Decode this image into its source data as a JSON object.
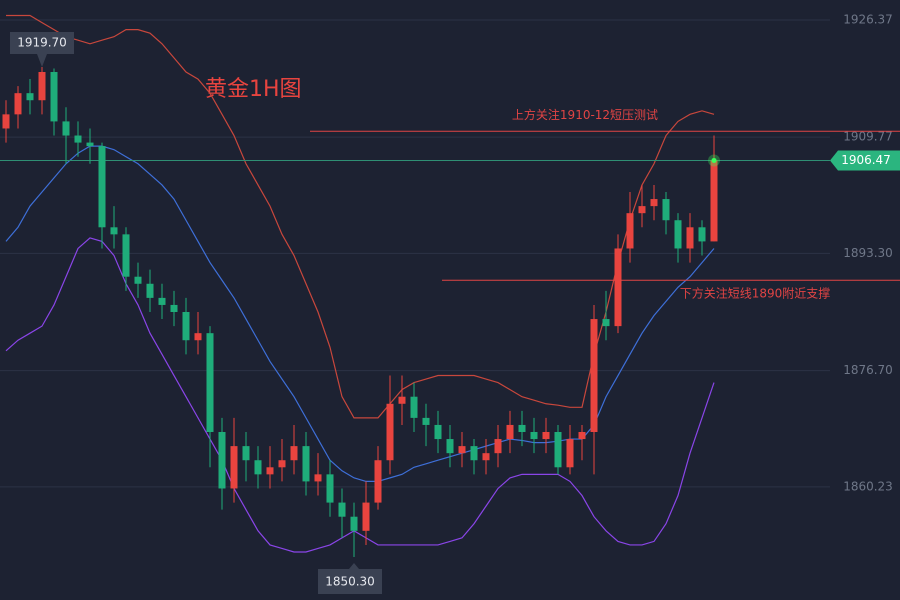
{
  "chart_data": {
    "type": "candlestick",
    "title": "黄金1H图",
    "ylim": [
      1844.2,
      1929.2
    ],
    "yticks": [
      1926.37,
      1909.77,
      {
        "value": 1893.3,
        "label": "1893.30"
      },
      {
        "value": 1876.7,
        "label": "1876.70"
      },
      1860.23
    ],
    "grid": true,
    "up_color": "#e8443f",
    "down_color": "#1fad7a",
    "open": [
      1911,
      1913,
      1916,
      1915,
      1919,
      1912,
      1910,
      1909,
      1908.5,
      1897,
      1896,
      1890,
      1889,
      1887,
      1886,
      1885,
      1881,
      1882,
      1868,
      1860,
      1866,
      1864,
      1862,
      1863,
      1864,
      1866,
      1861,
      1862,
      1858,
      1856,
      1854,
      1858,
      1864,
      1872,
      1873,
      1870,
      1869,
      1867,
      1865,
      1866,
      1864,
      1865,
      1867,
      1869,
      1868,
      1867,
      1868,
      1863,
      1867,
      1868,
      1884,
      1883,
      1894,
      1899,
      1900,
      1901,
      1898,
      1894,
      1897,
      1895
    ],
    "high": [
      1915,
      1917,
      1918,
      1919.7,
      1919.5,
      1914,
      1912,
      1911,
      1909,
      1900,
      1897,
      1892,
      1891,
      1889,
      1888,
      1887,
      1885,
      1883,
      1870,
      1870,
      1868,
      1866,
      1866,
      1867,
      1869,
      1868,
      1865,
      1864,
      1860,
      1858,
      1861,
      1866,
      1876,
      1876,
      1875,
      1872,
      1871,
      1869,
      1868,
      1867,
      1867,
      1869,
      1871,
      1871,
      1870,
      1870,
      1869,
      1869,
      1869,
      1886,
      1888,
      1896,
      1902,
      1903,
      1903,
      1902,
      1899,
      1899,
      1898,
      1910
    ],
    "low": [
      1909,
      1911,
      1913,
      1913,
      1910,
      1906,
      1907,
      1906,
      1894,
      1894,
      1888,
      1887,
      1885,
      1884,
      1883,
      1879,
      1879,
      1863,
      1857,
      1858,
      1861,
      1860,
      1860,
      1861,
      1862,
      1859,
      1859,
      1856,
      1853,
      1850.3,
      1852,
      1857,
      1862,
      1869,
      1868,
      1866,
      1865,
      1863,
      1863,
      1862,
      1862,
      1863,
      1865,
      1866,
      1865,
      1865,
      1862,
      1862,
      1864,
      1862,
      1881,
      1882,
      1892,
      1897,
      1898,
      1896,
      1892,
      1892,
      1893,
      1895
    ],
    "close": [
      1913,
      1916,
      1915,
      1919,
      1912,
      1910,
      1909,
      1908.5,
      1897,
      1896,
      1890,
      1889,
      1887,
      1886,
      1885,
      1881,
      1882,
      1868,
      1860,
      1866,
      1864,
      1862,
      1863,
      1864,
      1866,
      1861,
      1862,
      1858,
      1856,
      1854,
      1858,
      1864,
      1872,
      1873,
      1870,
      1869,
      1867,
      1865,
      1866,
      1864,
      1865,
      1867,
      1869,
      1868,
      1867,
      1868,
      1863,
      1867,
      1868,
      1884,
      1883,
      1894,
      1899,
      1900,
      1901,
      1898,
      1894,
      1897,
      1895,
      1906.47
    ],
    "series": [
      {
        "color": "#c8473c",
        "values": [
          1927,
          1927,
          1927,
          1926,
          1925,
          1924,
          1923.5,
          1923,
          1923.5,
          1924,
          1925,
          1925,
          1924.5,
          1923,
          1921,
          1919,
          1918,
          1916,
          1913,
          1910,
          1906,
          1903,
          1900,
          1896,
          1893,
          1889,
          1885,
          1880,
          1873,
          1870,
          1870,
          1870,
          1872,
          1874,
          1875,
          1875.5,
          1876,
          1876,
          1876,
          1876,
          1875.5,
          1875,
          1874,
          1873,
          1872.5,
          1872,
          1871.8,
          1871.5,
          1871.5,
          1879,
          1885,
          1892,
          1898,
          1903,
          1906,
          1910,
          1912,
          1913,
          1913.5,
          1913
        ]
      },
      {
        "color": "#3e6fd8",
        "values": [
          1895,
          1897,
          1900,
          1902,
          1904,
          1906,
          1907.5,
          1908.5,
          1908.5,
          1908,
          1907,
          1906,
          1904.5,
          1903,
          1901,
          1898,
          1895,
          1892,
          1889.5,
          1887,
          1884,
          1881,
          1878,
          1875.5,
          1873,
          1870,
          1867,
          1864,
          1862.5,
          1861.5,
          1861,
          1861,
          1861.5,
          1862,
          1863,
          1863.5,
          1864,
          1864.5,
          1865,
          1865.5,
          1866,
          1866.5,
          1867,
          1866.8,
          1866.5,
          1866.5,
          1866.7,
          1867,
          1867,
          1869,
          1873,
          1876,
          1879,
          1882,
          1884.5,
          1886.5,
          1888.5,
          1890,
          1892,
          1894
        ]
      },
      {
        "color": "#8a45e8",
        "values": [
          1879.5,
          1881,
          1882,
          1883,
          1886,
          1890,
          1894,
          1895.5,
          1895,
          1893,
          1889,
          1886,
          1882,
          1879,
          1876,
          1873,
          1870,
          1867,
          1864,
          1860,
          1857,
          1854,
          1852,
          1851.5,
          1851,
          1851,
          1851.5,
          1852,
          1853,
          1854,
          1853,
          1852,
          1852,
          1852,
          1852,
          1852,
          1852,
          1852.5,
          1853,
          1855,
          1857.5,
          1860,
          1861.5,
          1862,
          1862,
          1862,
          1862,
          1861,
          1859,
          1856,
          1854,
          1852.5,
          1852,
          1852,
          1852.5,
          1855,
          1859,
          1865,
          1870,
          1875
        ]
      }
    ],
    "levels": [
      {
        "label": "上方关注1910-12短压测试",
        "value": 1910.6,
        "color": "#e04444"
      },
      {
        "label": "下方关注短线1890附近支撑",
        "value": 1889.5,
        "color": "#e04444"
      }
    ],
    "last_price": 1906.47,
    "last_price_color": "#2bb57f",
    "high_marker": {
      "value": 1919.7,
      "label": "1919.70"
    },
    "low_marker": {
      "value": 1850.3,
      "label": "1850.30"
    }
  }
}
